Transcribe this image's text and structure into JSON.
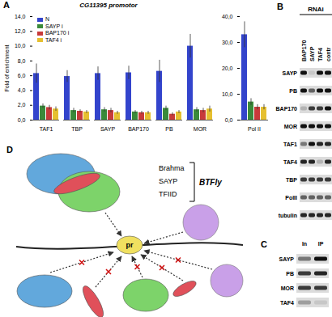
{
  "chart_data": [
    {
      "type": "bar",
      "title": "CG11395 promotor",
      "ylabel": "Fold of enrichment",
      "categories": [
        "TAF1",
        "TBP",
        "SAYP",
        "BAP170",
        "PB",
        "MOR"
      ],
      "series": [
        {
          "name": "N",
          "color": "#3344cc",
          "values": [
            6.3,
            5.9,
            6.3,
            6.4,
            6.6,
            10.0
          ],
          "errors": [
            1.3,
            0.8,
            0.9,
            0.9,
            1.5,
            1.6
          ]
        },
        {
          "name": "SAYP i",
          "color": "#3a8a3a",
          "values": [
            1.9,
            1.3,
            1.4,
            1.1,
            1.6,
            1.4
          ],
          "errors": [
            0.3,
            0.3,
            0.3,
            0.2,
            0.3,
            0.3
          ]
        },
        {
          "name": "BAP170 i",
          "color": "#c83a3a",
          "values": [
            1.7,
            1.2,
            1.3,
            1.0,
            0.8,
            1.3
          ],
          "errors": [
            0.3,
            0.2,
            0.3,
            0.2,
            0.2,
            0.3
          ]
        },
        {
          "name": "TAF4 i",
          "color": "#e6c030",
          "values": [
            1.5,
            1.1,
            1.0,
            1.0,
            1.1,
            1.5
          ],
          "errors": [
            0.3,
            0.2,
            0.2,
            0.2,
            0.2,
            0.4
          ]
        }
      ],
      "ylim": [
        0,
        14
      ],
      "yticks": [
        {
          "value": 0,
          "label": "0,0"
        },
        {
          "value": 2,
          "label": "2,0"
        },
        {
          "value": 4,
          "label": "4,0"
        },
        {
          "value": 6,
          "label": "6,0"
        },
        {
          "value": 8,
          "label": "8,0"
        },
        {
          "value": 10,
          "label": "10,0"
        },
        {
          "value": 12,
          "label": "12,0"
        },
        {
          "value": 14,
          "label": "14,0"
        }
      ],
      "legend": "top-left"
    },
    {
      "type": "bar",
      "categories": [
        "Pol II"
      ],
      "series": [
        {
          "name": "N",
          "color": "#3344cc",
          "values": [
            33
          ],
          "errors": [
            5
          ]
        },
        {
          "name": "SAYP i",
          "color": "#3a8a3a",
          "values": [
            7
          ],
          "errors": [
            1.3
          ]
        },
        {
          "name": "BAP170 i",
          "color": "#c83a3a",
          "values": [
            5
          ],
          "errors": [
            1
          ]
        },
        {
          "name": "TAF4 i",
          "color": "#e6c030",
          "values": [
            5
          ],
          "errors": [
            1
          ]
        }
      ],
      "ylim": [
        0,
        40
      ],
      "yticks": [
        {
          "value": 0,
          "label": "0,0"
        },
        {
          "value": 10,
          "label": "10,0"
        },
        {
          "value": 20,
          "label": "20,0"
        },
        {
          "value": 30,
          "label": "30,0"
        },
        {
          "value": 40,
          "label": "40,0"
        }
      ]
    }
  ],
  "letters": [
    "A",
    "B",
    "C",
    "D"
  ],
  "blot_B": {
    "header": "RNAi",
    "lanes": [
      "BAP170",
      "SAYP",
      "TAF4",
      "contr"
    ],
    "rows": [
      {
        "label": "SAYP",
        "intensity": [
          1,
          0.1,
          1,
          1
        ]
      },
      {
        "label": "PB",
        "intensity": [
          1,
          0.6,
          1,
          1
        ]
      },
      {
        "label": "BAP170",
        "intensity": [
          0.2,
          0.8,
          0.8,
          1
        ]
      },
      {
        "label": "MOR",
        "intensity": [
          1,
          1,
          1,
          1
        ]
      },
      {
        "label": "TAF1",
        "intensity": [
          0.5,
          1,
          0.9,
          0.9
        ]
      },
      {
        "label": "TAF4",
        "intensity": [
          0.9,
          0.9,
          0.2,
          0.9
        ]
      },
      {
        "label": "TBP",
        "intensity": [
          0.8,
          0.8,
          0.8,
          0.8
        ]
      },
      {
        "label": "PolII",
        "intensity": [
          0.6,
          0.6,
          0.6,
          0.6
        ]
      },
      {
        "label": "tubulin",
        "intensity": [
          0.9,
          0.9,
          0.9,
          0.9
        ]
      }
    ]
  },
  "blot_C": {
    "lanes": [
      "In",
      "IP"
    ],
    "rows": [
      {
        "label": "SAYP",
        "intensity": [
          0.5,
          1
        ]
      },
      {
        "label": "PB",
        "intensity": [
          0.8,
          0.9
        ]
      },
      {
        "label": "MOR",
        "intensity": [
          0.8,
          0.8
        ]
      },
      {
        "label": "TAF4",
        "intensity": [
          0.3,
          0.1
        ]
      }
    ]
  },
  "diagram_D": {
    "labels": {
      "brahma": "Brahma",
      "sayp": "SAYP",
      "tfiid": "TFIID",
      "complex": "BTFly",
      "promoter": "pr"
    }
  }
}
